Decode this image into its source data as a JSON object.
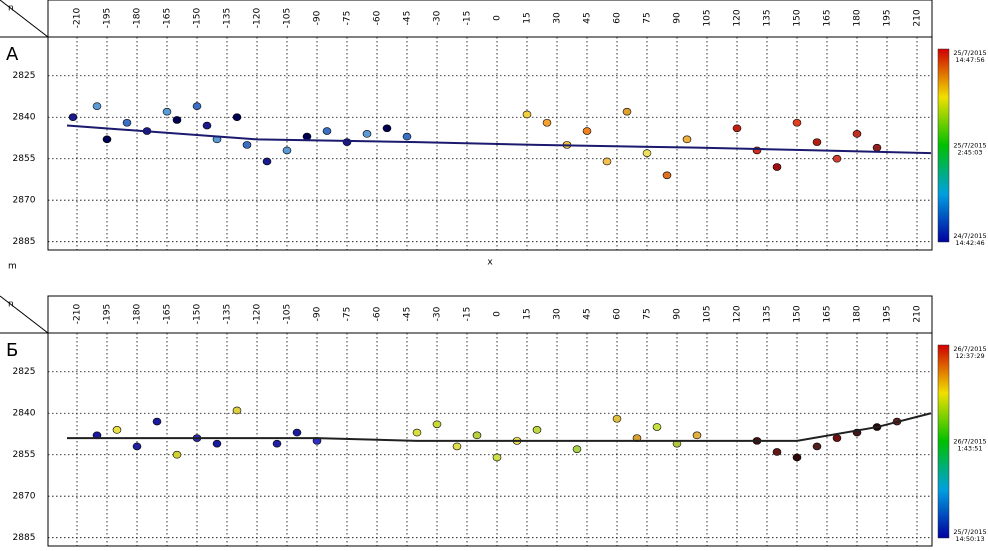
{
  "chart_data": [
    {
      "type": "scatter",
      "panel_label": "А",
      "corner_label": "n",
      "x_label": "x",
      "xlim": [
        -224.5,
        217.5
      ],
      "ylim": [
        2811,
        2888
      ],
      "y_reversed": true,
      "grid": true,
      "xticks": [
        -210,
        -195,
        -180,
        -165,
        -150,
        -135,
        -120,
        -105,
        -90,
        -75,
        -60,
        -45,
        -30,
        -15,
        0,
        15,
        30,
        45,
        60,
        75,
        90,
        105,
        120,
        135,
        150,
        165,
        180,
        195,
        210
      ],
      "yticks": [
        2825,
        2840,
        2855,
        2870,
        2885
      ],
      "points": {
        "x": [
          -212,
          -200,
          -195,
          -185,
          -175,
          -165,
          -160,
          -150,
          -145,
          -140,
          -130,
          -125,
          -115,
          -105,
          -95,
          -85,
          -75,
          -65,
          -55,
          -45,
          15,
          25,
          35,
          45,
          55,
          65,
          75,
          85,
          95,
          120,
          130,
          140,
          150,
          160,
          170,
          180,
          190
        ],
        "values": [
          2840,
          2836,
          2848,
          2842,
          2845,
          2838,
          2841,
          2836,
          2843,
          2848,
          2840,
          2850,
          2856,
          2852,
          2847,
          2845,
          2849,
          2846,
          2844,
          2847,
          2839,
          2842,
          2850,
          2845,
          2856,
          2838,
          2853,
          2861,
          2848,
          2844,
          2852,
          2858,
          2842,
          2849,
          2855,
          2846,
          2851
        ],
        "colors": [
          "#1a1a8c",
          "#5b9bd5",
          "#000050",
          "#3a6fc4",
          "#1a1a8c",
          "#5b9bd5",
          "#000050",
          "#3a6fc4",
          "#1a1a8c",
          "#5b9bd5",
          "#000050",
          "#3a6fc4",
          "#1a1a8c",
          "#5b9bd5",
          "#000050",
          "#3a6fc4",
          "#1a1a8c",
          "#5b9bd5",
          "#000050",
          "#3a6fc4",
          "#f0d040",
          "#f5a030",
          "#e8c040",
          "#f08020",
          "#f5c050",
          "#e0a030",
          "#f0e060",
          "#e07020",
          "#f0b040",
          "#c02010",
          "#d03020",
          "#a01010",
          "#e04020",
          "#b02010",
          "#d04030",
          "#c03020",
          "#902020"
        ]
      },
      "well": {
        "x": [
          -215,
          -120,
          -40,
          20,
          100,
          160,
          217
        ],
        "values": [
          2843,
          2848,
          2849,
          2850,
          2851,
          2852,
          2853
        ],
        "color": "#1a1a6e"
      },
      "colorbar_colors": [
        "#d00000",
        "#f0e000",
        "#00c000",
        "#00a0e0",
        "#0000a0"
      ],
      "colorbar_labels": [
        [
          "25/7/2015",
          "14:47:56"
        ],
        [
          "25/7/2015",
          "2:45:03"
        ],
        [
          "24/7/2015",
          "14:42:46"
        ]
      ]
    },
    {
      "type": "scatter",
      "panel_label": "Б",
      "corner_label": "n",
      "unit_label": "m",
      "xlim": [
        -224.5,
        217.5
      ],
      "ylim": [
        2811,
        2888
      ],
      "y_reversed": true,
      "grid": true,
      "xticks": [
        -210,
        -195,
        -180,
        -165,
        -150,
        -135,
        -120,
        -105,
        -90,
        -75,
        -60,
        -45,
        -30,
        -15,
        0,
        15,
        30,
        45,
        60,
        75,
        90,
        105,
        120,
        135,
        150,
        165,
        180,
        195,
        210
      ],
      "yticks": [
        2825,
        2840,
        2855,
        2870,
        2885
      ],
      "points": {
        "x": [
          -200,
          -190,
          -180,
          -170,
          -160,
          -150,
          -140,
          -130,
          -110,
          -100,
          -90,
          -40,
          -30,
          -20,
          -10,
          0,
          10,
          20,
          40,
          60,
          70,
          80,
          90,
          100,
          130,
          140,
          150,
          160,
          170,
          180,
          190,
          200
        ],
        "values": [
          2848,
          2846,
          2852,
          2843,
          2855,
          2849,
          2851,
          2839,
          2851,
          2847,
          2850,
          2847,
          2844,
          2852,
          2848,
          2856,
          2850,
          2846,
          2853,
          2842,
          2849,
          2845,
          2851,
          2848,
          2850,
          2854,
          2856,
          2852,
          2849,
          2847,
          2845,
          2843
        ],
        "colors": [
          "#1a1a9c",
          "#e8e040",
          "#2020a0",
          "#1a1a9c",
          "#d0d030",
          "#2a2ab0",
          "#1a1a9c",
          "#e0d040",
          "#2020a0",
          "#1a1a9c",
          "#3030c0",
          "#d8e040",
          "#c8d838",
          "#e0e050",
          "#b8d040",
          "#d0e048",
          "#e8e050",
          "#c0d840",
          "#a8d048",
          "#e0c040",
          "#d8a030",
          "#c8e040",
          "#b0c840",
          "#e0b040",
          "#401010",
          "#601818",
          "#300808",
          "#502020",
          "#701010",
          "#401818",
          "#200808",
          "#602020"
        ]
      },
      "well": {
        "x": [
          -215,
          -150,
          -90,
          -40,
          20,
          90,
          150,
          190,
          217
        ],
        "values": [
          2849,
          2849,
          2849,
          2850,
          2850,
          2850,
          2850,
          2845,
          2840
        ],
        "color": "#202020"
      },
      "colorbar_colors": [
        "#d00000",
        "#f0e000",
        "#00c000",
        "#00a0e0",
        "#0000a0"
      ],
      "colorbar_labels": [
        [
          "26/7/2015",
          "12:37:29"
        ],
        [
          "26/7/2015",
          "1:43:51"
        ],
        [
          "25/7/2015",
          "14:50:13"
        ]
      ]
    }
  ]
}
